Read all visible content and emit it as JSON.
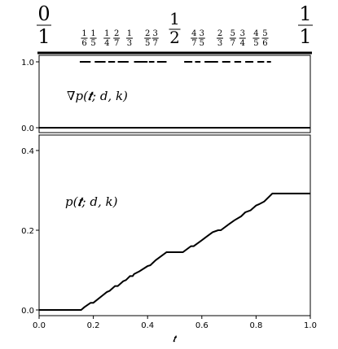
{
  "chart_data": [
    {
      "type": "line",
      "panel": "top-strip",
      "annotation": "",
      "breakpoint_labels": [
        {
          "num": "0",
          "den": "1",
          "x": 0.0,
          "size": "large"
        },
        {
          "num": "1",
          "den": "6",
          "x": 0.1667,
          "size": "small"
        },
        {
          "num": "1",
          "den": "5",
          "x": 0.2,
          "size": "small"
        },
        {
          "num": "1",
          "den": "4",
          "x": 0.25,
          "size": "small"
        },
        {
          "num": "2",
          "den": "7",
          "x": 0.2857,
          "size": "small"
        },
        {
          "num": "1",
          "den": "3",
          "x": 0.3333,
          "size": "small"
        },
        {
          "num": "2",
          "den": "5",
          "x": 0.4,
          "size": "small"
        },
        {
          "num": "3",
          "den": "7",
          "x": 0.4286,
          "size": "small"
        },
        {
          "num": "1",
          "den": "2",
          "x": 0.5,
          "size": "medium"
        },
        {
          "num": "4",
          "den": "7",
          "x": 0.5714,
          "size": "small"
        },
        {
          "num": "3",
          "den": "5",
          "x": 0.6,
          "size": "small"
        },
        {
          "num": "2",
          "den": "3",
          "x": 0.6667,
          "size": "small"
        },
        {
          "num": "5",
          "den": "7",
          "x": 0.7143,
          "size": "small"
        },
        {
          "num": "3",
          "den": "4",
          "x": 0.75,
          "size": "small"
        },
        {
          "num": "4",
          "den": "5",
          "x": 0.8,
          "size": "small"
        },
        {
          "num": "5",
          "den": "6",
          "x": 0.8333,
          "size": "small"
        },
        {
          "num": "1",
          "den": "1",
          "x": 1.0,
          "size": "large"
        }
      ]
    },
    {
      "type": "line",
      "panel": "gradient",
      "annotation": "∇p(𝒕; d, k)",
      "xlim": [
        0,
        1
      ],
      "ylim": [
        -0.08,
        1.08
      ],
      "yticks": [
        "0.0",
        "1.0"
      ],
      "baseline_y": 0.0,
      "segments_at_1": [
        [
          0.15,
          0.19
        ],
        [
          0.205,
          0.245
        ],
        [
          0.255,
          0.28
        ],
        [
          0.29,
          0.33
        ],
        [
          0.35,
          0.4
        ],
        [
          0.405,
          0.425
        ],
        [
          0.435,
          0.47
        ],
        [
          0.535,
          0.565
        ],
        [
          0.575,
          0.595
        ],
        [
          0.61,
          0.66
        ],
        [
          0.675,
          0.705
        ],
        [
          0.72,
          0.745
        ],
        [
          0.76,
          0.79
        ],
        [
          0.805,
          0.83
        ],
        [
          0.84,
          0.855
        ]
      ]
    },
    {
      "type": "line",
      "panel": "cdf",
      "annotation": "p(𝒕; d, k)",
      "xlabel": "𝒕",
      "xlim": [
        0,
        1
      ],
      "ylim": [
        -0.005,
        0.412
      ],
      "xticks": [
        "0.0",
        "0.2",
        "0.4",
        "0.6",
        "0.8",
        "1.0"
      ],
      "yticks": [
        "0.0",
        "0.2",
        "0.4"
      ],
      "points": [
        [
          0.0,
          0.0
        ],
        [
          0.155,
          0.0
        ],
        [
          0.167,
          0.007
        ],
        [
          0.19,
          0.018
        ],
        [
          0.2,
          0.018
        ],
        [
          0.25,
          0.045
        ],
        [
          0.26,
          0.048
        ],
        [
          0.28,
          0.06
        ],
        [
          0.29,
          0.06
        ],
        [
          0.31,
          0.072
        ],
        [
          0.32,
          0.075
        ],
        [
          0.335,
          0.085
        ],
        [
          0.345,
          0.085
        ],
        [
          0.35,
          0.09
        ],
        [
          0.37,
          0.097
        ],
        [
          0.4,
          0.11
        ],
        [
          0.41,
          0.112
        ],
        [
          0.43,
          0.125
        ],
        [
          0.47,
          0.145
        ],
        [
          0.53,
          0.145
        ],
        [
          0.56,
          0.16
        ],
        [
          0.57,
          0.16
        ],
        [
          0.6,
          0.175
        ],
        [
          0.61,
          0.18
        ],
        [
          0.64,
          0.195
        ],
        [
          0.66,
          0.2
        ],
        [
          0.67,
          0.2
        ],
        [
          0.7,
          0.215
        ],
        [
          0.72,
          0.225
        ],
        [
          0.745,
          0.235
        ],
        [
          0.76,
          0.245
        ],
        [
          0.78,
          0.25
        ],
        [
          0.8,
          0.262
        ],
        [
          0.81,
          0.265
        ],
        [
          0.83,
          0.272
        ],
        [
          0.86,
          0.292
        ],
        [
          1.0,
          0.292
        ]
      ]
    }
  ]
}
